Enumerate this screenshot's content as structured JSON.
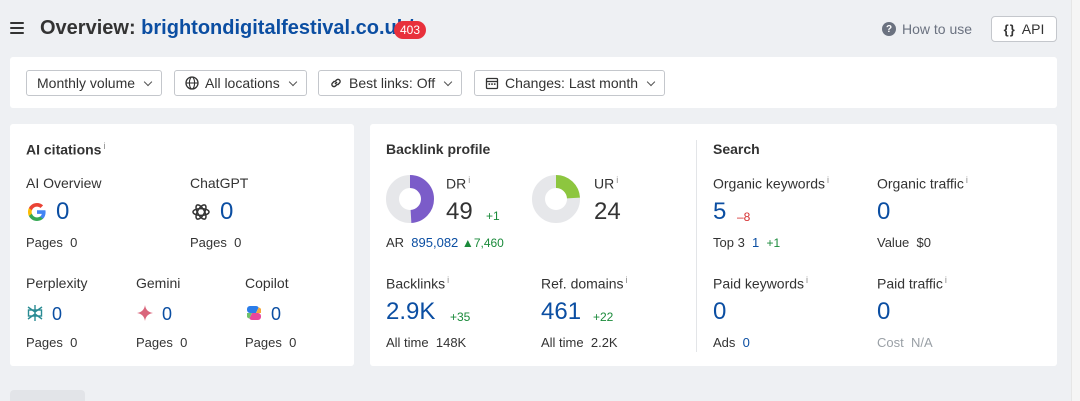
{
  "header": {
    "title_prefix": "Overview:",
    "domain": "brightondigitalfestival.co.uk/",
    "status_badge": "403",
    "how_to_use": "How to use",
    "api_label": "API",
    "api_icon": "{}"
  },
  "filters": [
    {
      "label": "Monthly volume",
      "icon": "none"
    },
    {
      "label": "All locations",
      "icon": "globe-icon"
    },
    {
      "label": "Best links: Off",
      "icon": "link-icon"
    },
    {
      "label": "Changes: Last month",
      "icon": "calendar-icon"
    }
  ],
  "ai_citations": {
    "title": "AI citations",
    "info": "i",
    "ai_overview": {
      "label": "AI Overview",
      "value": "0",
      "pages_label": "Pages",
      "pages_value": "0"
    },
    "chatgpt": {
      "label": "ChatGPT",
      "value": "0",
      "pages_label": "Pages",
      "pages_value": "0"
    },
    "perplexity": {
      "label": "Perplexity",
      "value": "0",
      "pages_label": "Pages",
      "pages_value": "0"
    },
    "gemini": {
      "label": "Gemini",
      "value": "0",
      "pages_label": "Pages",
      "pages_value": "0"
    },
    "copilot": {
      "label": "Copilot",
      "value": "0",
      "pages_label": "Pages",
      "pages_value": "0"
    }
  },
  "backlink_profile": {
    "title": "Backlink profile",
    "dr": {
      "label": "DR",
      "info": "i",
      "value": "49",
      "change": "+1",
      "ring_fraction": 0.49,
      "ring_color": "#7b5cc9"
    },
    "ar": {
      "label": "AR",
      "value": "895,082",
      "change": "7,460"
    },
    "ur": {
      "label": "UR",
      "info": "i",
      "value": "24",
      "ring_fraction": 0.24,
      "ring_color": "#8dc63f"
    },
    "backlinks": {
      "label": "Backlinks",
      "info": "i",
      "value": "2.9K",
      "change": "+35",
      "sub_label": "All time",
      "sub_value": "148K"
    },
    "ref_domains": {
      "label": "Ref. domains",
      "info": "i",
      "value": "461",
      "change": "+22",
      "sub_label": "All time",
      "sub_value": "2.2K"
    }
  },
  "search": {
    "title": "Search",
    "organic_keywords": {
      "label": "Organic keywords",
      "info": "i",
      "value": "5",
      "change": "–8",
      "sub_label": "Top 3",
      "sub_value": "1",
      "sub_change": "+1"
    },
    "organic_traffic": {
      "label": "Organic traffic",
      "info": "i",
      "value": "0",
      "sub_label": "Value",
      "sub_value": "$0"
    },
    "paid_keywords": {
      "label": "Paid keywords",
      "info": "i",
      "value": "0",
      "sub_label": "Ads",
      "sub_value": "0"
    },
    "paid_traffic": {
      "label": "Paid traffic",
      "info": "i",
      "value": "0",
      "sub_label": "Cost",
      "sub_value": "N/A"
    }
  },
  "colors": {
    "accent": "#0b4ea2",
    "positive": "#1a8a3a",
    "negative": "#d63031",
    "badge": "#e8303b"
  }
}
